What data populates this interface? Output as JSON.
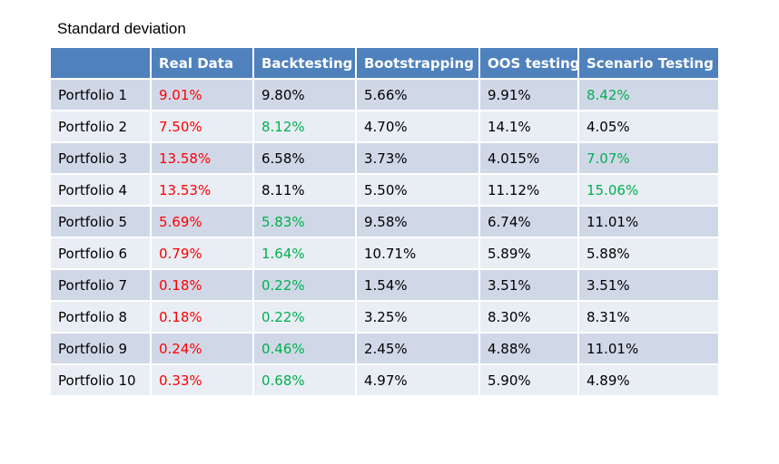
{
  "chart_data": {
    "type": "table",
    "title": "Standard deviation",
    "columns": [
      "",
      "Real Data",
      "Backtesting",
      "Bootstrapping",
      "OOS testing",
      "Scenario Testing"
    ],
    "rows": [
      {
        "label": "Portfolio 1",
        "cells": [
          "9.01%",
          "9.80%",
          "5.66%",
          "9.91%",
          "8.42%"
        ],
        "colors": [
          "red",
          "",
          "",
          "",
          "green"
        ]
      },
      {
        "label": "Portfolio 2",
        "cells": [
          "7.50%",
          "8.12%",
          "4.70%",
          "14.1%",
          "4.05%"
        ],
        "colors": [
          "red",
          "green",
          "",
          "",
          ""
        ]
      },
      {
        "label": "Portfolio 3",
        "cells": [
          "13.58%",
          "6.58%",
          "3.73%",
          "4.015%",
          "7.07%"
        ],
        "colors": [
          "red",
          "",
          "",
          "",
          "green"
        ]
      },
      {
        "label": "Portfolio 4",
        "cells": [
          "13.53%",
          "8.11%",
          "5.50%",
          "11.12%",
          "15.06%"
        ],
        "colors": [
          "red",
          "",
          "",
          "",
          "green"
        ]
      },
      {
        "label": "Portfolio 5",
        "cells": [
          "5.69%",
          "5.83%",
          "9.58%",
          "6.74%",
          "11.01%"
        ],
        "colors": [
          "red",
          "green",
          "",
          "",
          ""
        ]
      },
      {
        "label": "Portfolio 6",
        "cells": [
          "0.79%",
          "1.64%",
          "10.71%",
          "5.89%",
          "5.88%"
        ],
        "colors": [
          "red",
          "green",
          "",
          "",
          ""
        ]
      },
      {
        "label": "Portfolio 7",
        "cells": [
          "0.18%",
          "0.22%",
          "1.54%",
          "3.51%",
          "3.51%"
        ],
        "colors": [
          "red",
          "green",
          "",
          "",
          ""
        ]
      },
      {
        "label": "Portfolio 8",
        "cells": [
          "0.18%",
          "0.22%",
          "3.25%",
          "8.30%",
          "8.31%"
        ],
        "colors": [
          "red",
          "green",
          "",
          "",
          ""
        ]
      },
      {
        "label": "Portfolio 9",
        "cells": [
          "0.24%",
          "0.46%",
          "2.45%",
          "4.88%",
          "11.01%"
        ],
        "colors": [
          "red",
          "green",
          "",
          "",
          ""
        ]
      },
      {
        "label": "Portfolio 10",
        "cells": [
          "0.33%",
          "0.68%",
          "4.97%",
          "5.90%",
          "4.89%"
        ],
        "colors": [
          "red",
          "green",
          "",
          "",
          ""
        ]
      }
    ]
  },
  "colors": {
    "header_bg": "#4f81bd",
    "row_odd_bg": "#d0d8e8",
    "row_even_bg": "#e9edf4",
    "highlight_red": "#ff0000",
    "highlight_green": "#00b050"
  }
}
